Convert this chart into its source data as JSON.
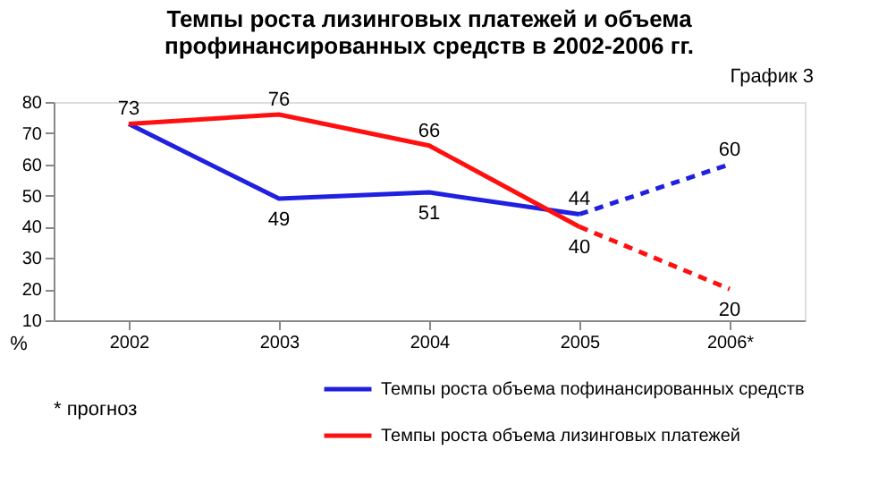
{
  "chart_data": {
    "type": "line",
    "title": "Темпы роста лизинговых платежей и объема профинансированных средств в 2002-2006 гг.",
    "ylabel": "%",
    "annotations": [
      "График 3",
      "* прогноз"
    ],
    "categories": [
      "2002",
      "2003",
      "2004",
      "2005",
      "2006*"
    ],
    "series": [
      {
        "name": "Темпы роста объема пофинансированных средств",
        "color": "#2020e0",
        "values": [
          73,
          49,
          51,
          44,
          null
        ],
        "value_labels": [
          "73",
          "49",
          "51",
          "44",
          null
        ]
      },
      {
        "name": "Темпы роста объема лизинговых платежей",
        "color": "#ff1010",
        "values": [
          73,
          76,
          66,
          40,
          null
        ],
        "value_labels": [
          null,
          "76",
          "66",
          "40",
          null
        ]
      },
      {
        "color": "#2020e0",
        "line_style": "dashed",
        "values": [
          null,
          null,
          null,
          44,
          60
        ],
        "value_labels": [
          null,
          null,
          null,
          null,
          "60"
        ]
      },
      {
        "color": "#ff1010",
        "line_style": "dashed",
        "values": [
          null,
          null,
          null,
          40,
          20
        ],
        "value_labels": [
          null,
          null,
          null,
          null,
          "20"
        ]
      }
    ],
    "ylim": [
      10,
      80
    ],
    "yticks": [
      10,
      20,
      30,
      40,
      50,
      60,
      70,
      80
    ],
    "grid": false,
    "legend": "bottom"
  }
}
